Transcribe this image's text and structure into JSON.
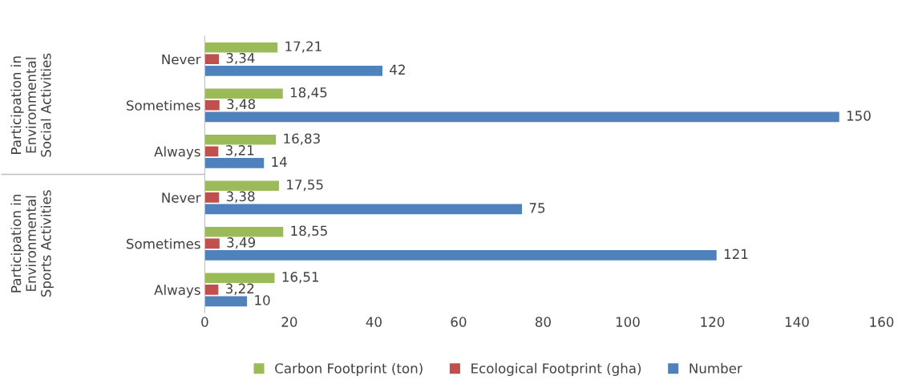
{
  "chart_data": {
    "type": "bar",
    "orientation": "horizontal",
    "categories": [
      "Never",
      "Sometimes",
      "Always",
      "Never",
      "Sometimes",
      "Always"
    ],
    "series": [
      {
        "name": "Carbon Footprint (ton)",
        "color": "#9bbb59",
        "values": [
          17.21,
          18.45,
          16.83,
          17.55,
          18.55,
          16.51
        ],
        "value_labels": [
          "17,21",
          "18,45",
          "16,83",
          "17,55",
          "18,55",
          "16,51"
        ]
      },
      {
        "name": "Ecological Footprint (gha)",
        "color": "#c0504d",
        "values": [
          3.34,
          3.48,
          3.21,
          3.38,
          3.49,
          3.22
        ],
        "value_labels": [
          "3,34",
          "3,48",
          "3,21",
          "3,38",
          "3,49",
          "3,22"
        ]
      },
      {
        "name": "Number",
        "color": "#4f81bd",
        "values": [
          42,
          150,
          14,
          75,
          121,
          10
        ],
        "value_labels": [
          "42",
          "150",
          "14",
          "75",
          "121",
          "10"
        ]
      }
    ],
    "annotations": [
      "Participation in\nEnvironmental\nSocial Activities",
      "Participation in\nEnvironmental\nSports Activities"
    ],
    "xlim": [
      0,
      160
    ],
    "xticks": [
      0,
      20,
      40,
      60,
      80,
      100,
      120,
      140,
      160
    ],
    "grid": false,
    "legend": "bottom"
  }
}
